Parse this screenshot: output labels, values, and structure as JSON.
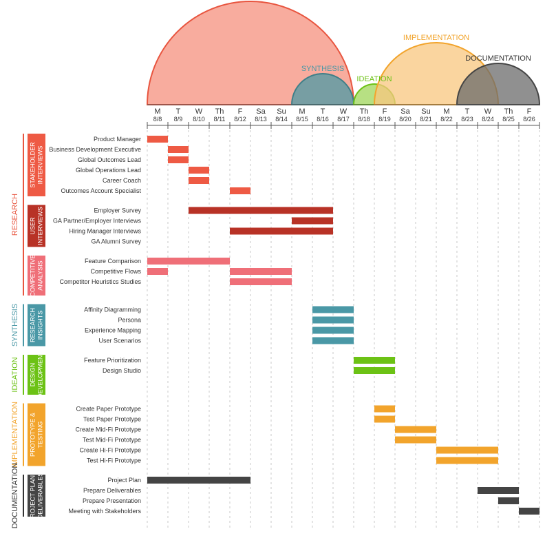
{
  "chart_data": {
    "type": "gantt",
    "title": "",
    "days": [
      {
        "letter": "M",
        "date": "8/8"
      },
      {
        "letter": "T",
        "date": "8/9"
      },
      {
        "letter": "W",
        "date": "8/10"
      },
      {
        "letter": "Th",
        "date": "8/11"
      },
      {
        "letter": "F",
        "date": "8/12"
      },
      {
        "letter": "Sa",
        "date": "8/13"
      },
      {
        "letter": "Su",
        "date": "8/14"
      },
      {
        "letter": "M",
        "date": "8/15"
      },
      {
        "letter": "T",
        "date": "8/16"
      },
      {
        "letter": "W",
        "date": "8/17"
      },
      {
        "letter": "Th",
        "date": "8/18"
      },
      {
        "letter": "F",
        "date": "8/19"
      },
      {
        "letter": "Sa",
        "date": "8/20"
      },
      {
        "letter": "Su",
        "date": "8/21"
      },
      {
        "letter": "M",
        "date": "8/22"
      },
      {
        "letter": "T",
        "date": "8/23"
      },
      {
        "letter": "W",
        "date": "8/24"
      },
      {
        "letter": "Th",
        "date": "8/25"
      },
      {
        "letter": "F",
        "date": "8/26"
      }
    ],
    "phases": [
      {
        "name": "RESEARCH",
        "start": "8/8",
        "end": "8/17",
        "color": "#f6907e",
        "stroke": "#e8553f",
        "label_color": "#e8553f"
      },
      {
        "name": "SYNTHESIS",
        "start": "8/15",
        "end": "8/17",
        "color": "#4c9aa4",
        "stroke": "#3f7f88",
        "label_color": "#4a98a6"
      },
      {
        "name": "IDEATION",
        "start": "8/18",
        "end": "8/19",
        "color": "#9fd65a",
        "stroke": "#6cc215",
        "label_color": "#6cc215"
      },
      {
        "name": "IMPLEMENTATION",
        "start": "8/19",
        "end": "8/24",
        "color": "#f8c77f",
        "stroke": "#f2a42c",
        "label_color": "#f2a42c"
      },
      {
        "name": "DOCUMENTATION",
        "start": "8/23",
        "end": "8/26",
        "color": "#6b6b6b",
        "stroke": "#444444",
        "label_color": "#333333"
      }
    ],
    "groups": [
      {
        "phase": "RESEARCH",
        "label": [
          "STAKEHOLDER",
          "INTERVIEWS"
        ],
        "color": "#ee5a44",
        "tasks": [
          {
            "name": "Product Manager",
            "bars": [
              [
                "8/8",
                "8/8"
              ]
            ]
          },
          {
            "name": "Business Development Executive",
            "bars": [
              [
                "8/9",
                "8/9"
              ]
            ]
          },
          {
            "name": "Global Outcomes Lead",
            "bars": [
              [
                "8/9",
                "8/9"
              ]
            ]
          },
          {
            "name": "Global Operations Lead",
            "bars": [
              [
                "8/10",
                "8/10"
              ]
            ]
          },
          {
            "name": "Career Coach",
            "bars": [
              [
                "8/10",
                "8/10"
              ]
            ]
          },
          {
            "name": "Outcomes Account Specialist",
            "bars": [
              [
                "8/12",
                "8/12"
              ]
            ]
          }
        ]
      },
      {
        "phase": "RESEARCH",
        "label": [
          "USER",
          "INTERVIEWS"
        ],
        "color": "#b83226",
        "tasks": [
          {
            "name": "Employer Survey",
            "bars": [
              [
                "8/10",
                "8/16"
              ]
            ]
          },
          {
            "name": "GA Partner/Employer Interviews",
            "bars": [
              [
                "8/15",
                "8/16"
              ]
            ]
          },
          {
            "name": "Hiring Manager Interviews",
            "bars": [
              [
                "8/12",
                "8/16"
              ]
            ]
          },
          {
            "name": "GA Alumni Survey",
            "bars": []
          }
        ]
      },
      {
        "phase": "RESEARCH",
        "label": [
          "COMPETITIVE",
          "ANALYSIS"
        ],
        "color": "#ef6f78",
        "tasks": [
          {
            "name": "Feature Comparison",
            "bars": [
              [
                "8/8",
                "8/11"
              ]
            ]
          },
          {
            "name": "Competitive Flows",
            "bars": [
              [
                "8/8",
                "8/8"
              ],
              [
                "8/12",
                "8/14"
              ]
            ]
          },
          {
            "name": "Competitor Heuristics Studies",
            "bars": [
              [
                "8/12",
                "8/14"
              ]
            ]
          }
        ]
      },
      {
        "phase": "SYNTHESIS",
        "label": [
          "RESEARCH",
          "INSIGHTS"
        ],
        "color": "#4a98a6",
        "tasks": [
          {
            "name": "Affinity Diagramming",
            "bars": [
              [
                "8/16",
                "8/17"
              ]
            ]
          },
          {
            "name": "Persona",
            "bars": [
              [
                "8/16",
                "8/17"
              ]
            ]
          },
          {
            "name": "Experience Mapping",
            "bars": [
              [
                "8/16",
                "8/17"
              ]
            ]
          },
          {
            "name": "User Scenarios",
            "bars": [
              [
                "8/16",
                "8/17"
              ]
            ]
          }
        ]
      },
      {
        "phase": "IDEATION",
        "label": [
          "DESIGN",
          "DEVELOPMENT"
        ],
        "color": "#6cc215",
        "tasks": [
          {
            "name": "Feature Prioritization",
            "bars": [
              [
                "8/18",
                "8/19"
              ]
            ]
          },
          {
            "name": "Design Studio",
            "bars": [
              [
                "8/18",
                "8/19"
              ]
            ]
          }
        ]
      },
      {
        "phase": "IMPLEMENTATION",
        "label": [
          "PROTOTYPE &",
          "TESTING"
        ],
        "color": "#f2a42c",
        "tasks": [
          {
            "name": "Create Paper Prototype",
            "bars": [
              [
                "8/19",
                "8/19"
              ]
            ]
          },
          {
            "name": "Test Paper Prototype",
            "bars": [
              [
                "8/19",
                "8/19"
              ]
            ]
          },
          {
            "name": "Create Mid-Fi Prototype",
            "bars": [
              [
                "8/20",
                "8/21"
              ]
            ]
          },
          {
            "name": "Test Mid-Fi Prototype",
            "bars": [
              [
                "8/20",
                "8/21"
              ]
            ]
          },
          {
            "name": "Create Hi-Fi Prototype",
            "bars": [
              [
                "8/22",
                "8/24"
              ]
            ]
          },
          {
            "name": "Test Hi-Fi Prototype",
            "bars": [
              [
                "8/22",
                "8/24"
              ]
            ]
          }
        ]
      },
      {
        "phase": "DOCUMENTATION",
        "label": [
          "PROJECT PLAN &",
          "DELIVERABLES"
        ],
        "color": "#444444",
        "tasks": [
          {
            "name": "Project Plan",
            "bars": [
              [
                "8/8",
                "8/12"
              ]
            ]
          },
          {
            "name": "Prepare Deliverables",
            "bars": [
              [
                "8/24",
                "8/25"
              ]
            ]
          },
          {
            "name": "Prepare Presentation",
            "bars": [
              [
                "8/25",
                "8/25"
              ]
            ]
          },
          {
            "name": "Meeting with Stakeholders",
            "bars": [
              [
                "8/26",
                "8/26"
              ]
            ]
          }
        ]
      }
    ]
  }
}
